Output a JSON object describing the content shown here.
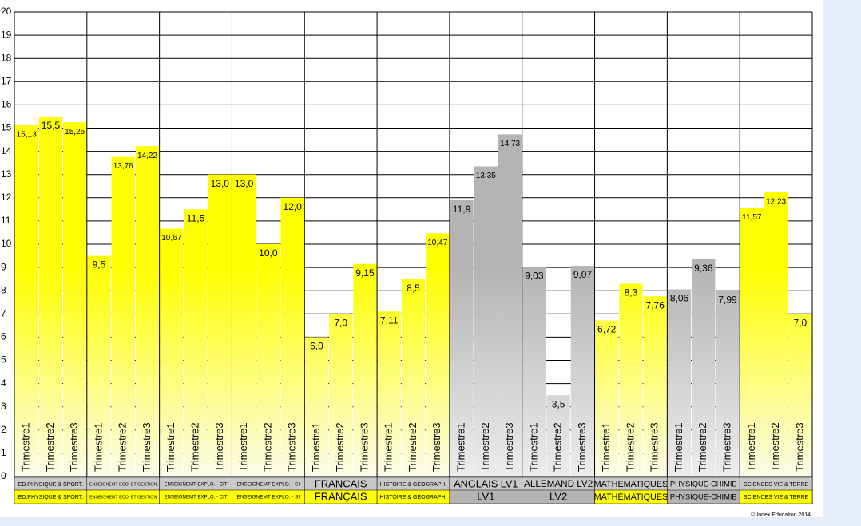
{
  "chart_data": {
    "type": "bar",
    "ylim": [
      0,
      20
    ],
    "yticks": [
      0,
      1,
      2,
      3,
      4,
      5,
      6,
      7,
      8,
      9,
      10,
      11,
      12,
      13,
      14,
      15,
      16,
      17,
      18,
      19,
      20
    ],
    "grid": true,
    "categories": [
      "ED.PHYSIQUE & SPORT.",
      "ENSEIGNEMT ECO. ET GESTION",
      "ENSEIGNEMT EXPLO. - CIT",
      "ENSEIGNEMT EXPLO. - SI",
      "FRANCAIS",
      "HISTOIRE & GEOGRAPH.",
      "ANGLAIS LV1",
      "ALLEMAND LV2",
      "MATHEMATIQUES",
      "PHYSIQUE-CHIMIE",
      "SCIENCES VIE & TERRE"
    ],
    "categories_2": [
      "ED.PHYSIQUE & SPORT.",
      "ENSEIGNEMT ECO. ET GESTION",
      "ENSEIGNEMT EXPLO. - CIT",
      "ENSEIGNEMT EXPLO. - SI",
      "FRANÇAIS",
      "HISTOIRE & GEOGRAPH.",
      "LV1",
      "LV2",
      "MATHÉMATIQUES",
      "PHYSIQUE-CHIMIE",
      "SCIENCES VIE & TERRE"
    ],
    "category_colors": [
      "#ffff00",
      "#ffff00",
      "#ffff00",
      "#ffff00",
      "#ffff00",
      "#ffff00",
      "#b4b4b4",
      "#b4b4b4",
      "#ffff00",
      "#b4b4b4",
      "#ffff00"
    ],
    "series": [
      {
        "name": "Trimestre1",
        "values": [
          15.13,
          9.5,
          10.67,
          13.0,
          6.0,
          7.11,
          11.9,
          9.03,
          6.72,
          8.06,
          11.57
        ],
        "value_labels": [
          "15,13",
          "9,5",
          "10,67",
          "13,0",
          "6,0",
          "7,11",
          "11,9",
          "9,03",
          "6,72",
          "8,06",
          "11,57"
        ]
      },
      {
        "name": "Trimestre2",
        "values": [
          15.5,
          13.76,
          11.5,
          10.0,
          7.0,
          8.5,
          13.35,
          3.5,
          8.3,
          9.36,
          12.23
        ],
        "value_labels": [
          "15,5",
          "13,76",
          "11,5",
          "10,0",
          "7,0",
          "8,5",
          "13,35",
          "3,5",
          "8,3",
          "9,36",
          "12,23"
        ]
      },
      {
        "name": "Trimestre3",
        "values": [
          15.25,
          14.22,
          13.0,
          12.0,
          9.15,
          10.47,
          14.73,
          9.07,
          7.76,
          7.99,
          7.0
        ],
        "value_labels": [
          "15,25",
          "14,22",
          "13,0",
          "12,0",
          "9,15",
          "10,47",
          "14,73",
          "9,07",
          "7,76",
          "7,99",
          "7,0"
        ]
      }
    ]
  },
  "footer": "© Index Education 2014"
}
